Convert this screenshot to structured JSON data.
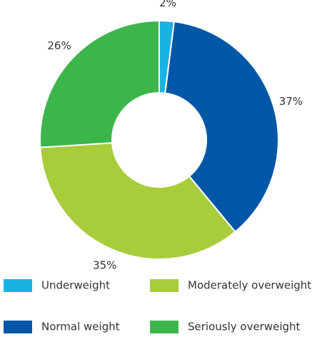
{
  "chart_data": {
    "type": "donut",
    "categories": [
      "Underweight",
      "Normal weight",
      "Moderately overweight",
      "Seriously overweight"
    ],
    "values": [
      2,
      37,
      35,
      26
    ],
    "value_labels": [
      "2%",
      "37%",
      "35%",
      "26%"
    ],
    "colors": [
      "#1ab2e3",
      "#0057a8",
      "#a8cc3a",
      "#3cb54b"
    ],
    "legend": "bottom"
  }
}
